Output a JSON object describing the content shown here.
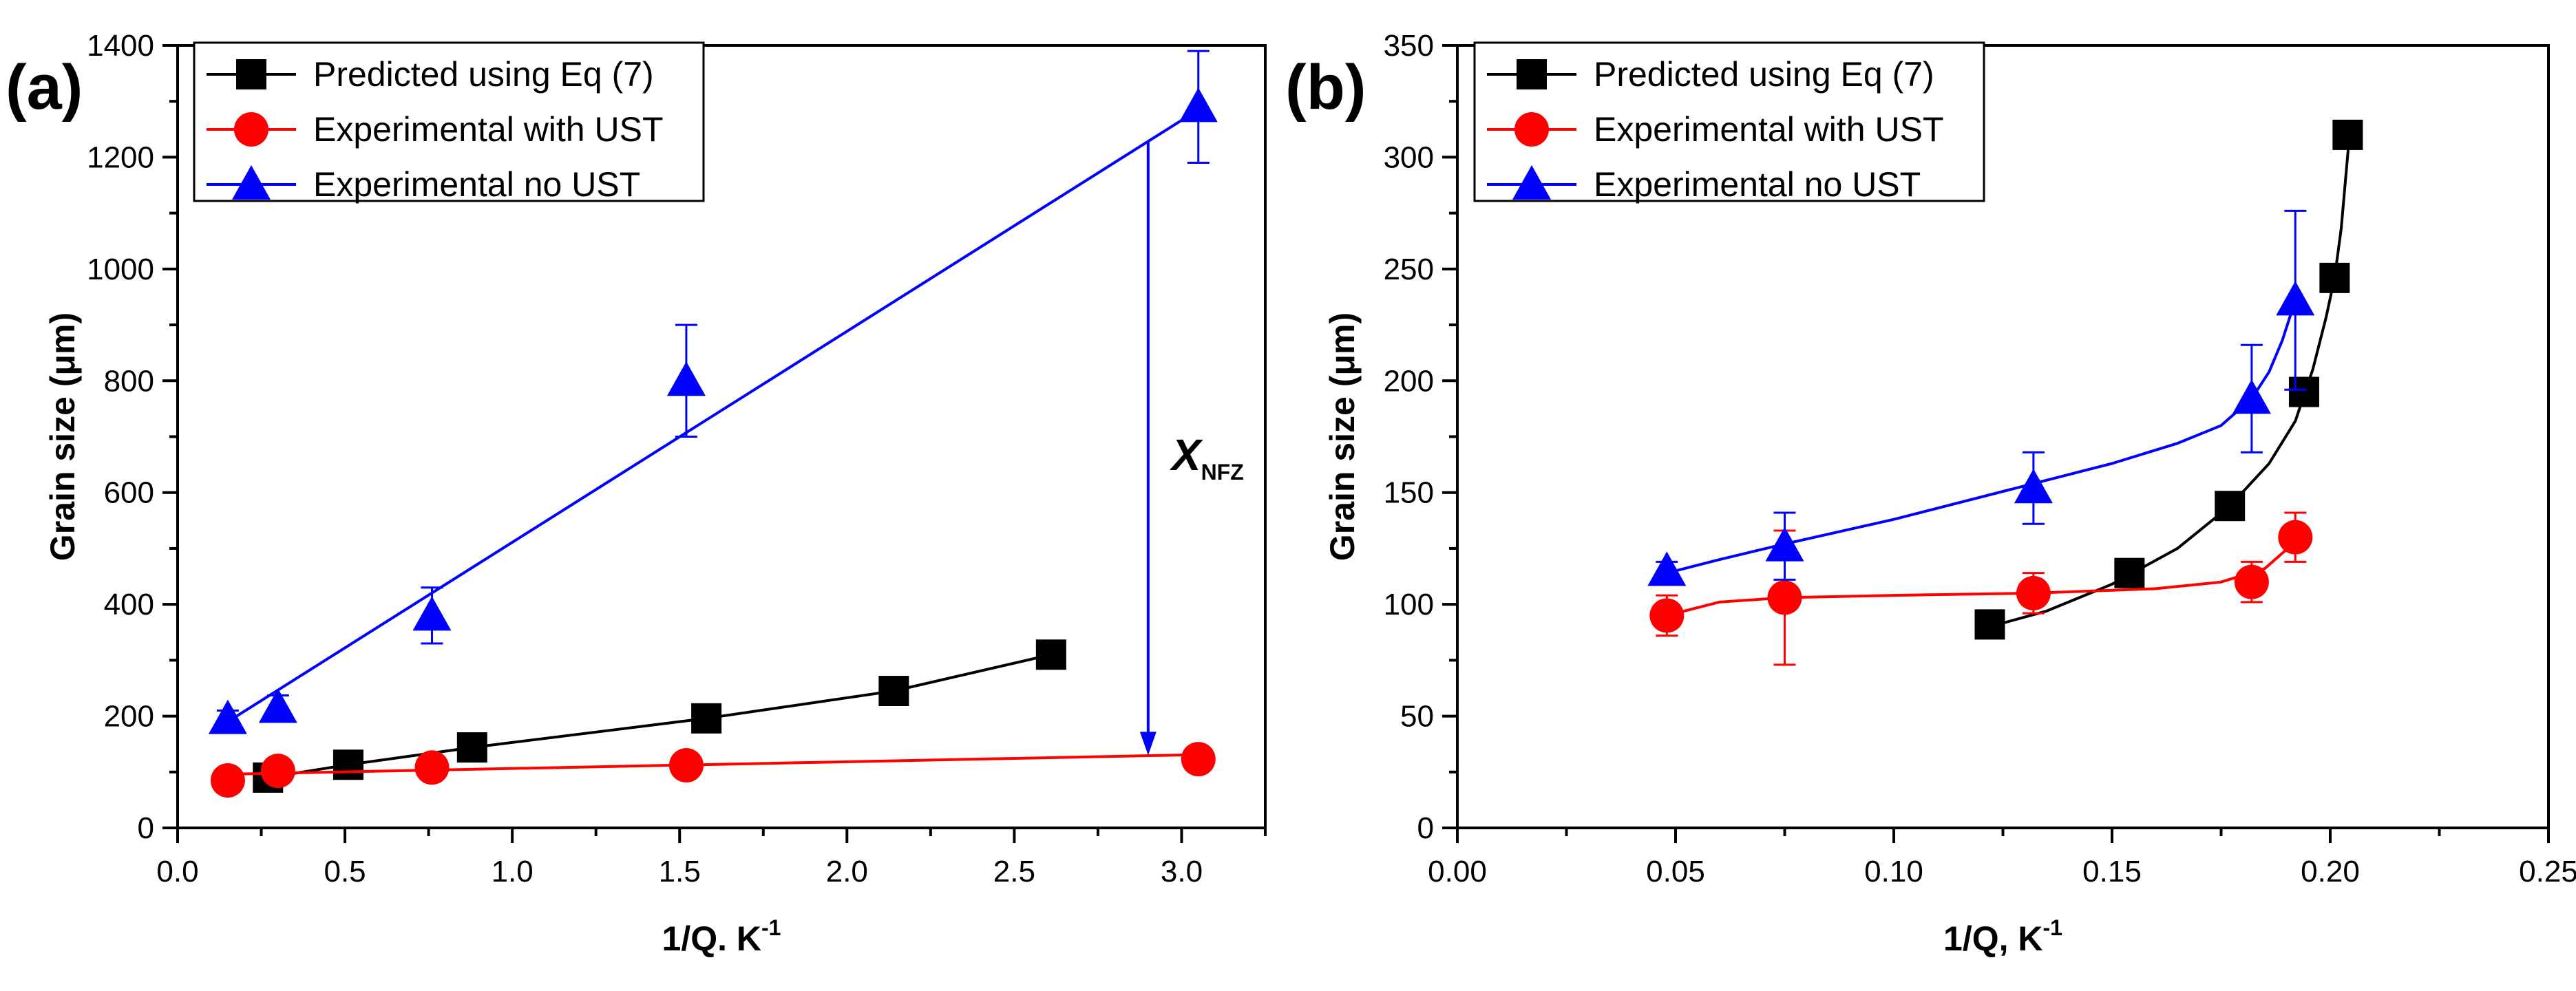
{
  "colors": {
    "black": "#000000",
    "red": "#ff0000",
    "blue": "#0000ff"
  },
  "chart_data": [
    {
      "type": "line",
      "panel_label": "(a)",
      "xlabel": "1/Q. K",
      "xlabel_sup": "-1",
      "ylabel": "Grain size (μm)",
      "xlim": [
        0,
        3.25
      ],
      "ylim": [
        0,
        1400
      ],
      "xticks": [
        0.0,
        0.5,
        1.0,
        1.5,
        2.0,
        2.5,
        3.0
      ],
      "yticks": [
        0,
        200,
        400,
        600,
        800,
        1000,
        1200,
        1400
      ],
      "xtick_labels": [
        "0.0",
        "0.5",
        "1.0",
        "1.5",
        "2.0",
        "2.5",
        "3.0"
      ],
      "ytick_labels": [
        "0",
        "200",
        "400",
        "600",
        "800",
        "1000",
        "1200",
        "1400"
      ],
      "legend_position": "top-left",
      "series": [
        {
          "name": "Predicted using Eq (7)",
          "color": "#000000",
          "marker": "square",
          "x": [
            0.27,
            0.51,
            0.88,
            1.58,
            2.14,
            2.61
          ],
          "y": [
            90,
            113,
            144,
            196,
            245,
            310
          ],
          "fit": [
            [
              0.27,
              90
            ],
            [
              0.51,
              113
            ],
            [
              0.88,
              144
            ],
            [
              1.58,
              196
            ],
            [
              2.14,
              245
            ],
            [
              2.61,
              310
            ]
          ]
        },
        {
          "name": "Experimental with UST",
          "color": "#ff0000",
          "marker": "circle",
          "x": [
            0.15,
            0.3,
            0.76,
            1.52,
            3.05
          ],
          "y": [
            85,
            102,
            108,
            112,
            123
          ],
          "err": [
            8,
            6,
            6,
            6,
            6
          ],
          "fit": [
            [
              0.15,
              96
            ],
            [
              3.05,
              131
            ]
          ]
        },
        {
          "name": "Experimental no UST",
          "color": "#0000ff",
          "marker": "triangle",
          "x": [
            0.15,
            0.3,
            0.76,
            1.52,
            3.05
          ],
          "y": [
            195,
            215,
            380,
            800,
            1290
          ],
          "err": [
            15,
            22,
            50,
            100,
            100
          ],
          "fit": [
            [
              0.15,
              190
            ],
            [
              3.05,
              1285
            ]
          ]
        }
      ],
      "annotations": [
        {
          "text": "X",
          "subscript": "NFZ",
          "x": 2.97,
          "y": 640,
          "arrow_x": 2.9,
          "arrow_from": 1230,
          "arrow_to": 130
        }
      ]
    },
    {
      "type": "line",
      "panel_label": "(b)",
      "xlabel": "1/Q, K",
      "xlabel_sup": "-1",
      "ylabel": "Grain size (μm)",
      "xlim": [
        0,
        0.25
      ],
      "ylim": [
        0,
        350
      ],
      "xticks": [
        0.0,
        0.05,
        0.1,
        0.15,
        0.2,
        0.25
      ],
      "yticks": [
        0,
        50,
        100,
        150,
        200,
        250,
        300,
        350
      ],
      "xtick_labels": [
        "0.00",
        "0.05",
        "0.10",
        "0.15",
        "0.20",
        "0.25"
      ],
      "ytick_labels": [
        "0",
        "50",
        "100",
        "150",
        "200",
        "250",
        "300",
        "350"
      ],
      "legend_position": "top-left",
      "series": [
        {
          "name": "Predicted using Eq (7)",
          "color": "#000000",
          "marker": "square",
          "x": [
            0.122,
            0.154,
            0.177,
            0.194,
            0.201,
            0.204
          ],
          "y": [
            91,
            114,
            144,
            195,
            246,
            310
          ],
          "fit": [
            [
              0.122,
              90
            ],
            [
              0.135,
              97
            ],
            [
              0.15,
              109
            ],
            [
              0.165,
              125
            ],
            [
              0.177,
              144
            ],
            [
              0.186,
              163
            ],
            [
              0.192,
              182
            ],
            [
              0.196,
              205
            ],
            [
              0.199,
              228
            ],
            [
              0.201,
              246
            ],
            [
              0.2025,
              268
            ],
            [
              0.2035,
              290
            ],
            [
              0.2045,
              312
            ]
          ]
        },
        {
          "name": "Experimental with UST",
          "color": "#ff0000",
          "marker": "circle",
          "x": [
            0.048,
            0.075,
            0.132,
            0.182,
            0.192
          ],
          "y": [
            95,
            103,
            105,
            110,
            130
          ],
          "err": [
            9,
            30,
            9,
            9,
            11
          ],
          "fit": [
            [
              0.048,
              95
            ],
            [
              0.06,
              101
            ],
            [
              0.075,
              103
            ],
            [
              0.1,
              104
            ],
            [
              0.132,
              105
            ],
            [
              0.16,
              107
            ],
            [
              0.175,
              110
            ],
            [
              0.185,
              116
            ],
            [
              0.192,
              128
            ]
          ]
        },
        {
          "name": "Experimental no UST",
          "color": "#0000ff",
          "marker": "triangle",
          "x": [
            0.048,
            0.075,
            0.132,
            0.182,
            0.192
          ],
          "y": [
            115,
            126,
            152,
            192,
            236
          ],
          "err": [
            4,
            15,
            16,
            24,
            40
          ],
          "fit": [
            [
              0.048,
              114
            ],
            [
              0.06,
              120
            ],
            [
              0.075,
              127
            ],
            [
              0.1,
              138
            ],
            [
              0.132,
              154
            ],
            [
              0.15,
              163
            ],
            [
              0.165,
              172
            ],
            [
              0.175,
              180
            ],
            [
              0.182,
              192
            ],
            [
              0.186,
              204
            ],
            [
              0.189,
              218
            ],
            [
              0.192,
              236
            ]
          ]
        }
      ]
    }
  ]
}
